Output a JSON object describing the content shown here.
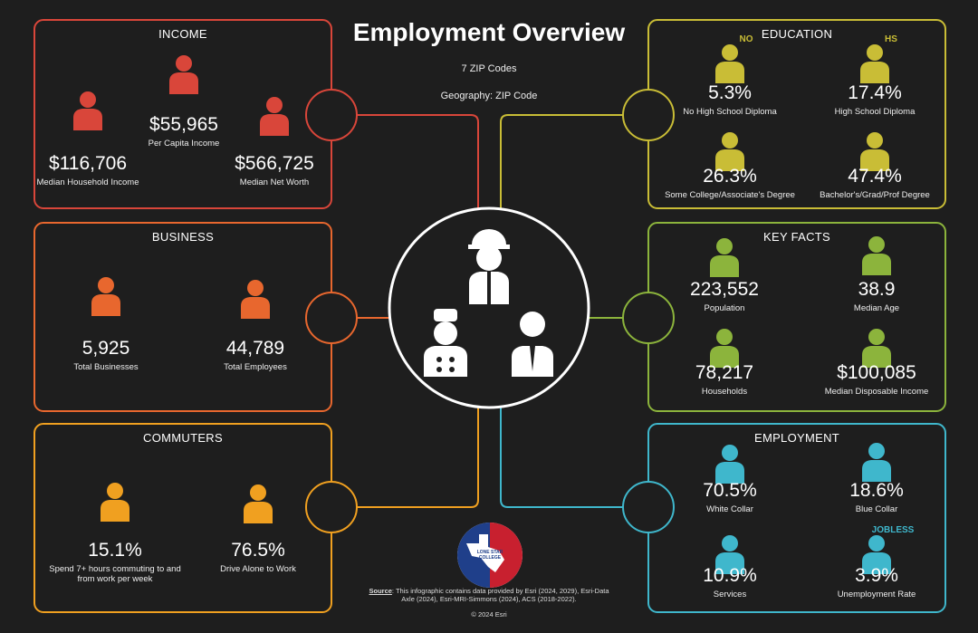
{
  "header": {
    "title": "Employment Overview",
    "subtitle": "7 ZIP Codes",
    "geography": "Geography: ZIP Code"
  },
  "panels": [
    {
      "title": "INCOME",
      "items": [
        {
          "value": "$55,965",
          "label": "Per Capita Income"
        },
        {
          "value": "$116,706",
          "label": "Median Household Income"
        },
        {
          "value": "$566,725",
          "label": "Median Net Worth"
        }
      ]
    },
    {
      "title": "BUSINESS",
      "items": [
        {
          "value": "5,925",
          "label": "Total Businesses"
        },
        {
          "value": "44,789",
          "label": "Total Employees"
        }
      ]
    },
    {
      "title": "COMMUTERS",
      "items": [
        {
          "value": "15.1%",
          "label": "Spend 7+ hours commuting to and from work per week"
        },
        {
          "value": "76.5%",
          "label": "Drive Alone to Work"
        }
      ]
    },
    {
      "title": "EDUCATION",
      "items": [
        {
          "badge": "NO",
          "value": "5.3%",
          "label": "No High School Diploma"
        },
        {
          "badge": "HS",
          "value": "17.4%",
          "label": "High School Diploma"
        },
        {
          "value": "26.3%",
          "label": "Some College/Associate's Degree"
        },
        {
          "value": "47.4%",
          "label": "Bachelor's/Grad/Prof Degree"
        }
      ]
    },
    {
      "title": "KEY FACTS",
      "items": [
        {
          "value": "223,552",
          "label": "Population"
        },
        {
          "value": "38.9",
          "label": "Median Age"
        },
        {
          "value": "78,217",
          "label": "Households"
        },
        {
          "value": "$100,085",
          "label": "Median Disposable Income"
        }
      ]
    },
    {
      "title": "EMPLOYMENT",
      "items": [
        {
          "value": "70.5%",
          "label": "White Collar"
        },
        {
          "value": "18.6%",
          "label": "Blue Collar"
        },
        {
          "value": "10.9%",
          "label": "Services"
        },
        {
          "badge": "JOBLESS",
          "value": "3.9%",
          "label": "Unemployment Rate"
        }
      ]
    }
  ],
  "logo": "LONE STAR COLLEGE",
  "source": {
    "label": "Source",
    "text": ": This infographic contains data provided by Esri (2024, 2029), Esri-Data Axle (2024), Esri-MRI-Simmons (2024), ACS (2018-2022)."
  },
  "copyright": "© 2024 Esri"
}
